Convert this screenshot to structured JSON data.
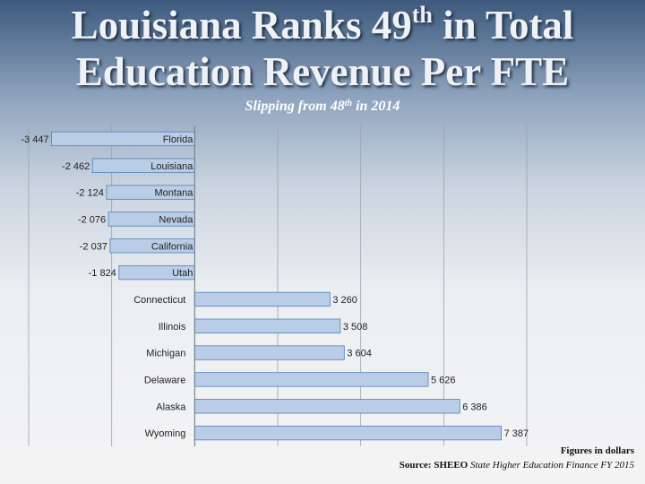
{
  "slide": {
    "title_line1_pre": "Louisiana Ranks 49",
    "title_line1_sup": "th",
    "title_line1_post": " in Total",
    "title_line2": "Education Revenue Per FTE",
    "subtitle_pre": "Slipping from 48",
    "subtitle_sup": "th",
    "subtitle_post": " in 2014",
    "footnote_line1": "Figures in dollars",
    "footnote_source_label": "Source: SHEEO",
    "footnote_source_text": " State Higher Education Finance FY 2015"
  },
  "chart_data": {
    "type": "bar",
    "orientation": "horizontal",
    "categories": [
      "Florida",
      "Louisiana",
      "Montana",
      "Nevada",
      "California",
      "Utah",
      "Connecticut",
      "Illinois",
      "Michigan",
      "Delaware",
      "Alaska",
      "Wyoming"
    ],
    "values": [
      -3447,
      -2462,
      -2124,
      -2076,
      -2037,
      -1824,
      3260,
      3508,
      3604,
      5626,
      6386,
      7387
    ],
    "value_labels": [
      "-3 447",
      "-2 462",
      "-2 124",
      "-2 076",
      "-2 037",
      "-1 824",
      "3 260",
      "3 508",
      "3 604",
      "5 626",
      "6 386",
      "7 387"
    ],
    "xlim": [
      -4000,
      8000
    ],
    "grid": true,
    "bar_color": "#b9cde6",
    "bar_border_color": "#4f81bd"
  }
}
